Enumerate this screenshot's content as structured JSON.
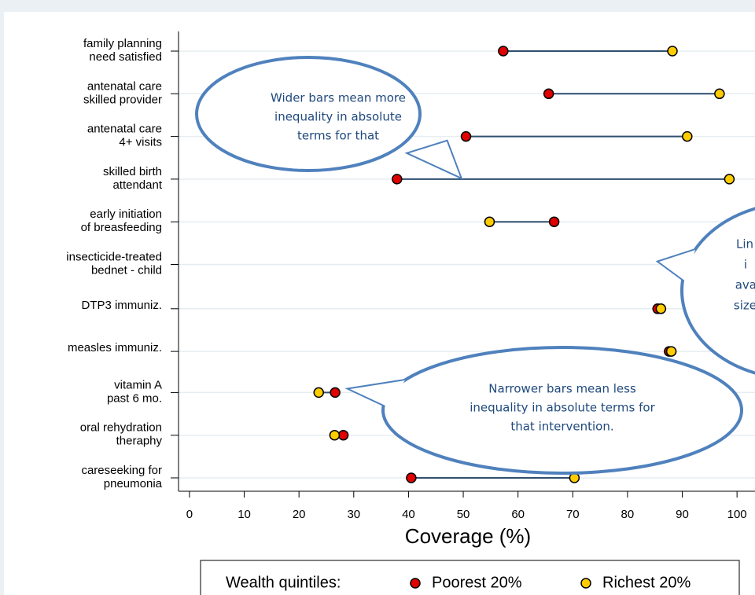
{
  "chart_data": {
    "type": "dumbbell",
    "x_label": "Coverage (%)",
    "categories": [
      [
        "family planning",
        "need satisfied"
      ],
      [
        "antenatal care",
        "skilled provider"
      ],
      [
        "antenatal care",
        "4+ visits"
      ],
      [
        "skilled birth",
        "attendant"
      ],
      [
        "early initiation",
        "of breasfeeding"
      ],
      [
        "insecticide-treated",
        "bednet - child"
      ],
      [
        "DTP3 immuniz."
      ],
      [
        "measles immuniz."
      ],
      [
        "vitamin A",
        "past 6 mo."
      ],
      [
        "oral rehydration",
        "theraphy"
      ],
      [
        "careseeking for",
        "pneumonia"
      ]
    ],
    "series": [
      {
        "name": "Poorest 20%",
        "color": "#e00000",
        "values": [
          57.3,
          65.6,
          50.5,
          37.9,
          66.6,
          null,
          85.5,
          87.6,
          26.6,
          28.1,
          40.5
        ]
      },
      {
        "name": "Richest 20%",
        "color": "#ffcc00",
        "values": [
          88.2,
          96.8,
          90.9,
          98.6,
          54.8,
          null,
          86.1,
          88.0,
          23.6,
          26.5,
          70.3
        ]
      }
    ],
    "line_color": "#2f4f6f",
    "legend_title": "Wealth quintiles:",
    "legend": "bottom",
    "grid": true,
    "xlim": [
      -2,
      104
    ],
    "xticks": [
      0,
      10,
      20,
      30,
      40,
      50,
      60,
      70,
      80,
      90,
      100
    ],
    "annotations": [
      {
        "lines": [
          "Wider bars mean more",
          "inequality in absolute",
          "terms for that"
        ]
      },
      {
        "lines": [
          "Narrower bars mean less",
          "inequality in absolute terms for",
          "that intervention."
        ]
      },
      {
        "lines": [
          "Lin",
          "i",
          "ava",
          "size"
        ]
      }
    ]
  }
}
